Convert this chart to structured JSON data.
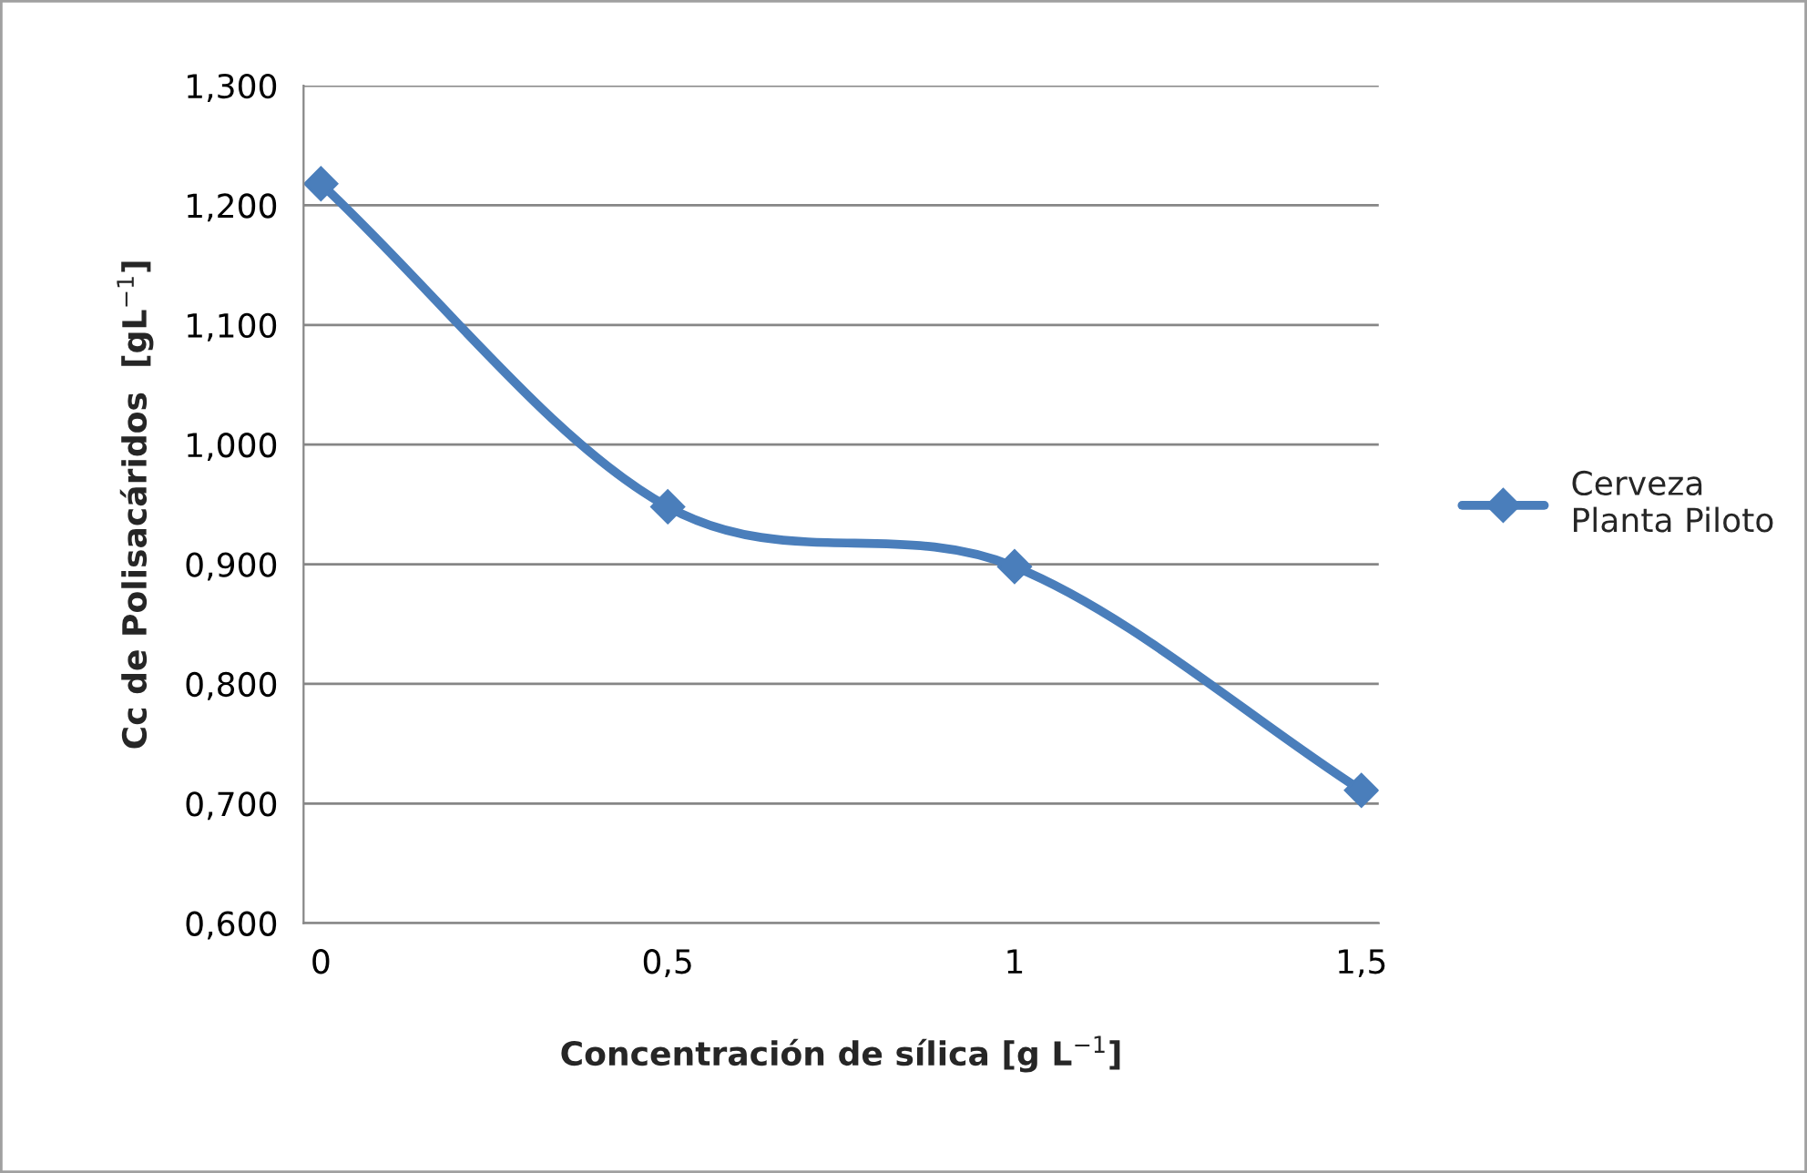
{
  "chart_data": {
    "type": "line",
    "xlabel": "Concentración de sílica [g L$^{−1}$]",
    "ylabel": "Cc de Polisacáridos  [gL$^{−1}$]",
    "categories": [
      "0",
      "0,5",
      "1",
      "1,5"
    ],
    "series": [
      {
        "name": "Cerveza\nPlanta Piloto",
        "color": "#4a7ebb",
        "values": [
          1.218,
          0.948,
          0.898,
          0.711
        ]
      }
    ],
    "ylim": [
      0.6,
      1.3
    ],
    "yticks": [
      {
        "value": 0.6,
        "label": "0,600"
      },
      {
        "value": 0.7,
        "label": "0,700"
      },
      {
        "value": 0.8,
        "label": "0,800"
      },
      {
        "value": 0.9,
        "label": "0,900"
      },
      {
        "value": 1.0,
        "label": "1,000"
      },
      {
        "value": 1.1,
        "label": "1,100"
      },
      {
        "value": 1.2,
        "label": "1,200"
      },
      {
        "value": 1.3,
        "label": "1,300"
      }
    ],
    "grid": "y",
    "legend": "right",
    "marker": "diamond",
    "line_style": "solid"
  }
}
